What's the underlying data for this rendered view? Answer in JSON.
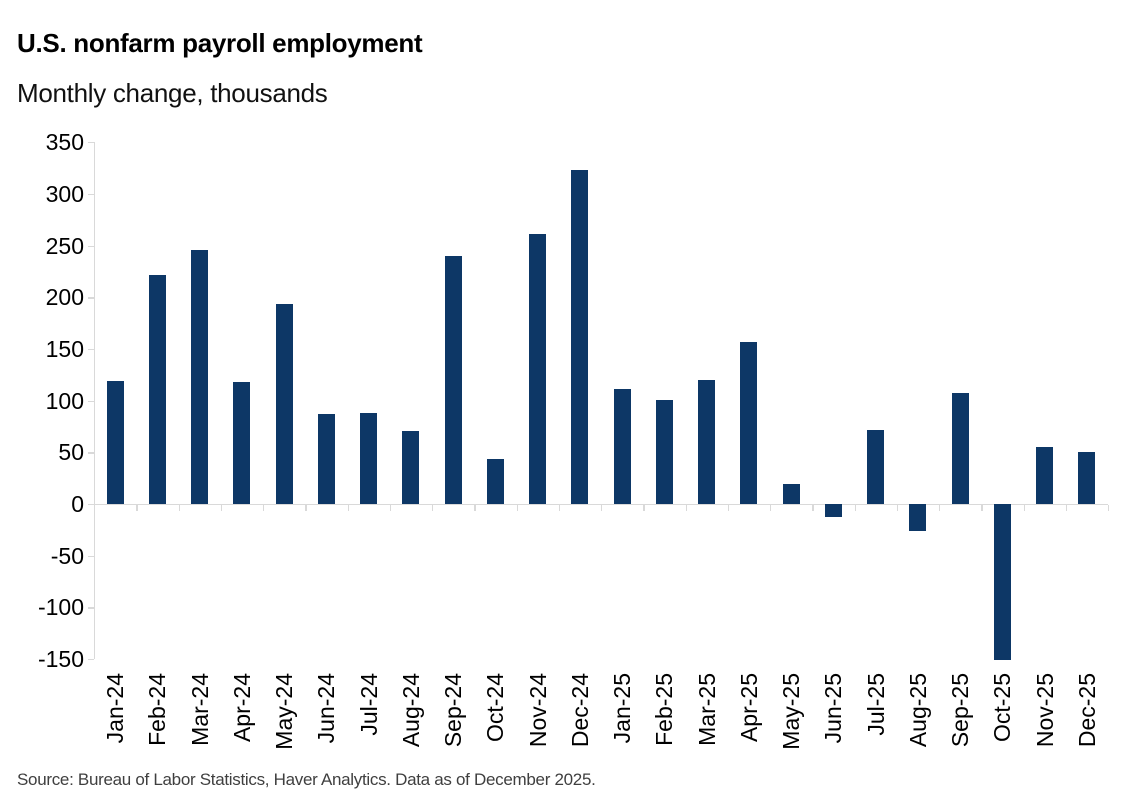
{
  "title": "U.S. nonfarm payroll employment",
  "subtitle": "Monthly change, thousands",
  "source": "Source: Bureau of Labor Statistics, Haver Analytics. Data as of December 2025.",
  "colors": {
    "bar": "#0d3766",
    "axis": "#d9d9d9",
    "text": "#000000",
    "source_text": "#3f3f3f"
  },
  "chart_data": {
    "type": "bar",
    "title": "U.S. nonfarm payroll employment",
    "subtitle": "Monthly change, thousands",
    "xlabel": "",
    "ylabel": "Monthly change, thousands",
    "categories": [
      "Jan-24",
      "Feb-24",
      "Mar-24",
      "Apr-24",
      "May-24",
      "Jun-24",
      "Jul-24",
      "Aug-24",
      "Sep-24",
      "Oct-24",
      "Nov-24",
      "Dec-24",
      "Jan-25",
      "Feb-25",
      "Mar-25",
      "Apr-25",
      "May-25",
      "Jun-25",
      "Jul-25",
      "Aug-25",
      "Sep-25",
      "Oct-25",
      "Nov-25",
      "Dec-25"
    ],
    "values": [
      119,
      222,
      246,
      118,
      193,
      87,
      88,
      71,
      240,
      44,
      261,
      323,
      111,
      101,
      120,
      157,
      19,
      -13,
      72,
      -26,
      107,
      -151,
      55,
      50
    ],
    "ylim": [
      -150,
      350
    ],
    "ytick_interval": 50,
    "yticks": [
      350,
      300,
      250,
      200,
      150,
      100,
      50,
      0,
      -50,
      -100,
      -150
    ],
    "grid": false,
    "legend": "none"
  }
}
